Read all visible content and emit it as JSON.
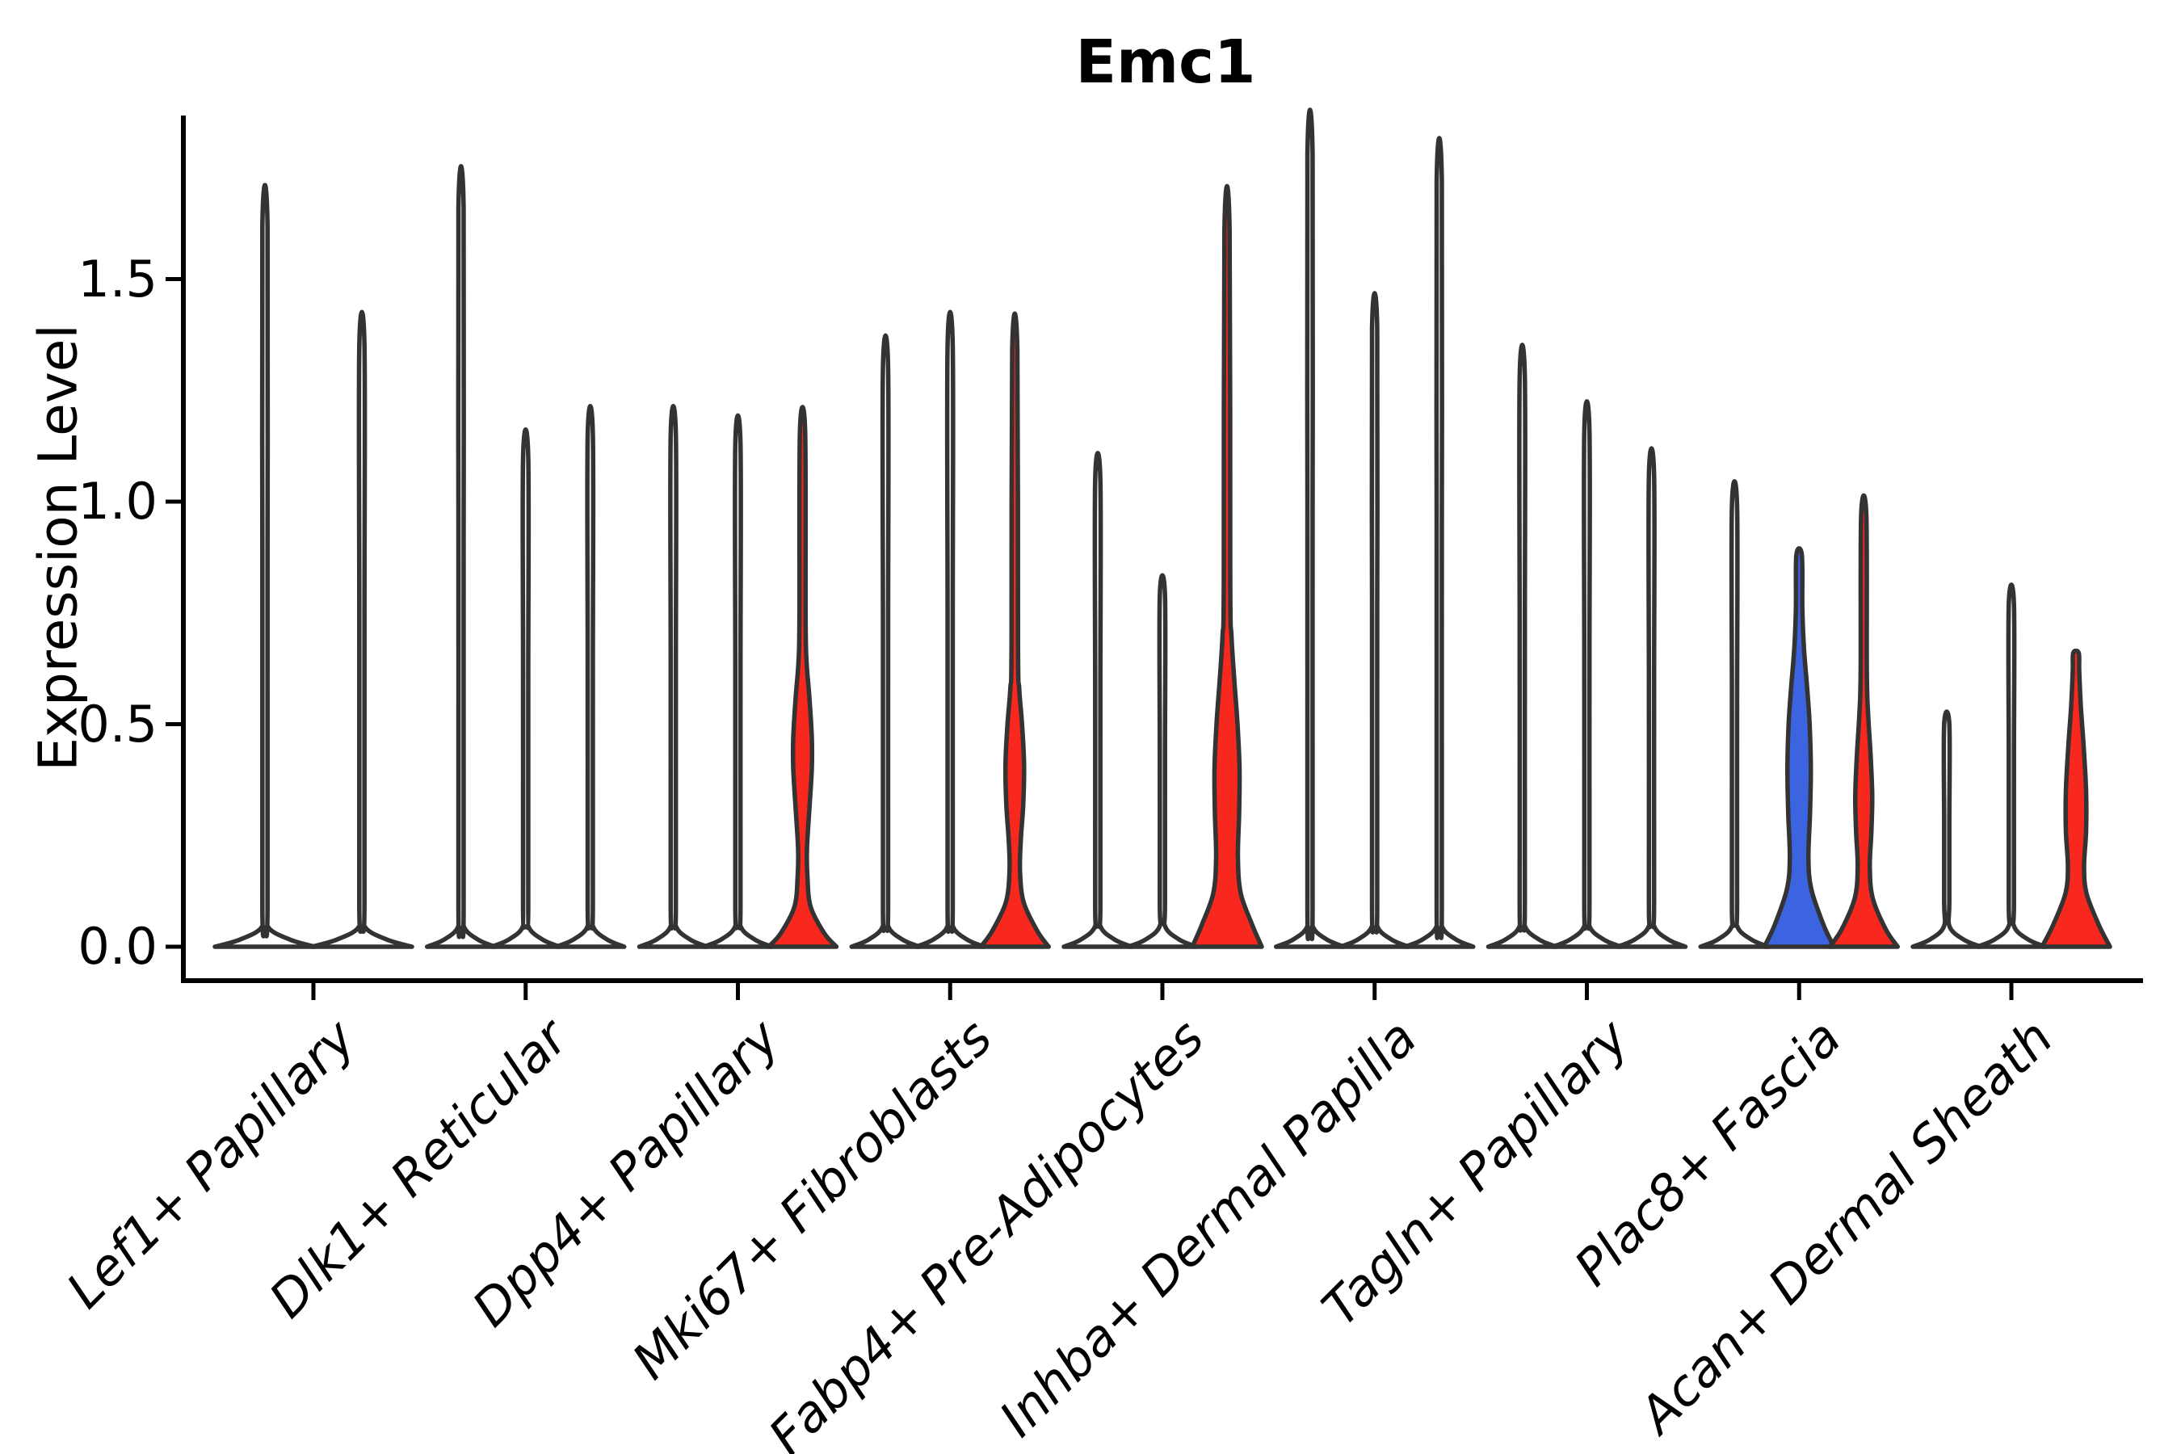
{
  "title": "Emc1",
  "axes": {
    "ylabel": "Expression Level",
    "ytick_labels": [
      "0.0",
      "0.5",
      "1.0",
      "1.5"
    ],
    "ytick_values": [
      0,
      0.5,
      1.0,
      1.5
    ]
  },
  "chart_data": {
    "type": "violin",
    "title": "Emc1",
    "xlabel": "",
    "ylabel": "Expression Level",
    "ylim": [
      -0.09,
      1.88
    ],
    "yticks": [
      0,
      0.5,
      1.0,
      1.5
    ],
    "ytick_labels": [
      "0.0",
      "0.5",
      "1.0",
      "1.5"
    ],
    "grid": false,
    "legend": null,
    "colors": {
      "red": "#F8281F",
      "blue": "#3C64E1",
      "white": "#FFFFFF",
      "outline": "#333333",
      "spine": "#000000"
    },
    "categories": [
      "Lef1+ Papillary",
      "Dlk1+ Reticular",
      "Dpp4+ Papillary",
      "Mki67+ Fibroblasts",
      "Fabp4+ Pre-Adipocytes",
      "Inhba+ Dermal Papilla",
      "Tagln+ Papillary",
      "Plac8+ Fascia",
      "Acan+ Dermal Sheath"
    ],
    "groups": [
      {
        "category": "Lef1+ Papillary",
        "violins": [
          {
            "offset": -60,
            "max": 1.62,
            "fill": "white",
            "base_halfwidth": 62
          },
          {
            "offset": 60,
            "max": 1.35,
            "fill": "white",
            "base_halfwidth": 62
          }
        ]
      },
      {
        "category": "Dlk1+ Reticular",
        "violins": [
          {
            "offset": -80,
            "max": 1.66,
            "fill": "white",
            "base_halfwidth": 42
          },
          {
            "offset": 0,
            "max": 1.1,
            "fill": "white",
            "base_halfwidth": 42
          },
          {
            "offset": 80,
            "max": 1.15,
            "fill": "white",
            "base_halfwidth": 42
          }
        ]
      },
      {
        "category": "Dpp4+ Papillary",
        "violins": [
          {
            "offset": -80,
            "max": 1.15,
            "fill": "white",
            "base_halfwidth": 42
          },
          {
            "offset": 0,
            "max": 1.13,
            "fill": "white",
            "base_halfwidth": 42
          },
          {
            "offset": 80,
            "max": 1.16,
            "fill": "red",
            "base_halfwidth": 42,
            "profile": [
              [
                0,
                42
              ],
              [
                0.03,
                27
              ],
              [
                0.09,
                10
              ],
              [
                0.16,
                6
              ],
              [
                0.22,
                5.5
              ],
              [
                0.31,
                8.5
              ],
              [
                0.4,
                11.5
              ],
              [
                0.47,
                11.5
              ],
              [
                0.56,
                8.5
              ],
              [
                0.64,
                5
              ],
              [
                0.74,
                3.8
              ],
              [
                1.16,
                3.2
              ]
            ]
          }
        ]
      },
      {
        "category": "Mki67+ Fibroblasts",
        "violins": [
          {
            "offset": -80,
            "max": 1.3,
            "fill": "white",
            "base_halfwidth": 42
          },
          {
            "offset": 0,
            "max": 1.35,
            "fill": "white",
            "base_halfwidth": 42
          },
          {
            "offset": 80,
            "max": 1.34,
            "fill": "red",
            "base_halfwidth": 42,
            "profile": [
              [
                0,
                42
              ],
              [
                0.035,
                28
              ],
              [
                0.1,
                11
              ],
              [
                0.17,
                6.5
              ],
              [
                0.24,
                7.5
              ],
              [
                0.32,
                10.5
              ],
              [
                0.41,
                11.5
              ],
              [
                0.5,
                9
              ],
              [
                0.58,
                5.5
              ],
              [
                0.68,
                4
              ],
              [
                1.34,
                3.2
              ]
            ]
          }
        ]
      },
      {
        "category": "Fabp4+ Pre-Adipocytes",
        "violins": [
          {
            "offset": -80,
            "max": 1.05,
            "fill": "white",
            "base_halfwidth": 42
          },
          {
            "offset": 0,
            "max": 0.79,
            "fill": "white",
            "base_halfwidth": 42
          },
          {
            "offset": 80,
            "max": 1.61,
            "fill": "red",
            "base_halfwidth": 43,
            "profile": [
              [
                0,
                43
              ],
              [
                0.05,
                31
              ],
              [
                0.12,
                17
              ],
              [
                0.2,
                13.5
              ],
              [
                0.3,
                15
              ],
              [
                0.4,
                15.5
              ],
              [
                0.5,
                13
              ],
              [
                0.6,
                9
              ],
              [
                0.7,
                5.5
              ],
              [
                0.82,
                4
              ],
              [
                1.61,
                3.2
              ]
            ]
          }
        ]
      },
      {
        "category": "Inhba+ Dermal Papilla",
        "violins": [
          {
            "offset": -80,
            "max": 1.78,
            "fill": "white",
            "base_halfwidth": 42
          },
          {
            "offset": 0,
            "max": 1.39,
            "fill": "white",
            "base_halfwidth": 42
          },
          {
            "offset": 80,
            "max": 1.72,
            "fill": "white",
            "base_halfwidth": 42
          }
        ]
      },
      {
        "category": "Tagln+ Papillary",
        "violins": [
          {
            "offset": -80,
            "max": 1.28,
            "fill": "white",
            "base_halfwidth": 42
          },
          {
            "offset": 0,
            "max": 1.16,
            "fill": "white",
            "base_halfwidth": 42
          },
          {
            "offset": 80,
            "max": 1.06,
            "fill": "white",
            "base_halfwidth": 42
          }
        ]
      },
      {
        "category": "Plac8+ Fascia",
        "violins": [
          {
            "offset": -80,
            "max": 0.99,
            "fill": "white",
            "base_halfwidth": 42
          },
          {
            "offset": 0,
            "max": 0.88,
            "fill": "blue",
            "base_halfwidth": 43,
            "profile": [
              [
                0,
                43
              ],
              [
                0.05,
                30
              ],
              [
                0.13,
                15
              ],
              [
                0.2,
                11.5
              ],
              [
                0.3,
                13.5
              ],
              [
                0.4,
                14.5
              ],
              [
                0.5,
                13
              ],
              [
                0.58,
                10
              ],
              [
                0.67,
                6
              ],
              [
                0.76,
                4
              ],
              [
                0.88,
                3.4
              ]
            ]
          },
          {
            "offset": 80,
            "max": 0.97,
            "fill": "red",
            "base_halfwidth": 42,
            "profile": [
              [
                0,
                42
              ],
              [
                0.04,
                27
              ],
              [
                0.11,
                11
              ],
              [
                0.18,
                7.5
              ],
              [
                0.26,
                9.5
              ],
              [
                0.34,
                10.5
              ],
              [
                0.43,
                8.5
              ],
              [
                0.52,
                5.5
              ],
              [
                0.62,
                3.8
              ],
              [
                0.97,
                3.2
              ]
            ]
          }
        ]
      },
      {
        "category": "Acan+ Dermal Sheath",
        "violins": [
          {
            "offset": -80,
            "max": 0.5,
            "fill": "white",
            "base_halfwidth": 42
          },
          {
            "offset": 0,
            "max": 0.77,
            "fill": "white",
            "base_halfwidth": 42
          },
          {
            "offset": 80,
            "max": 0.66,
            "fill": "red",
            "base_halfwidth": 42,
            "profile": [
              [
                0,
                42
              ],
              [
                0.05,
                28
              ],
              [
                0.12,
                13
              ],
              [
                0.18,
                10
              ],
              [
                0.26,
                12.5
              ],
              [
                0.35,
                12.5
              ],
              [
                0.45,
                9.5
              ],
              [
                0.54,
                6
              ],
              [
                0.62,
                4
              ],
              [
                0.66,
                3.4
              ]
            ]
          }
        ]
      }
    ]
  }
}
